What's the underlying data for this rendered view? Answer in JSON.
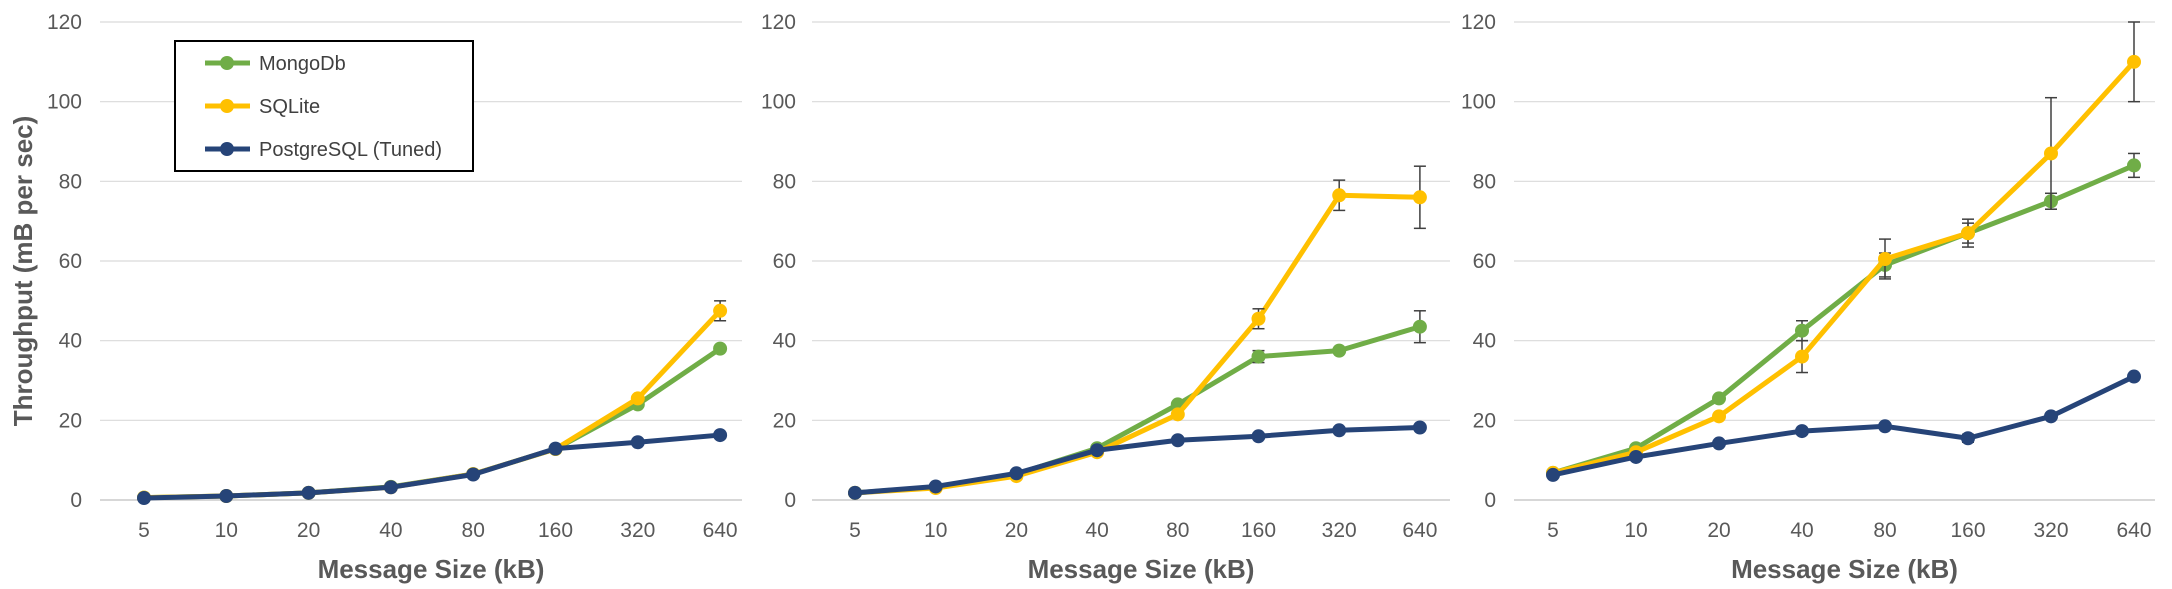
{
  "chart_data": [
    {
      "type": "line",
      "categories": [
        "5",
        "10",
        "20",
        "40",
        "80",
        "160",
        "320",
        "640"
      ],
      "xlabel": "Message Size (kB)",
      "ylabel": "Throughput (mB per sec)",
      "ylim": [
        0,
        120
      ],
      "yticks": [
        "0",
        "20",
        "40",
        "60",
        "80",
        "100",
        "120"
      ],
      "grid": true,
      "legend": "top-left",
      "series": [
        {
          "name": "MongoDb",
          "color": "#70ad47",
          "values": [
            0.6,
            1.0,
            1.8,
            3.3,
            6.5,
            12.8,
            24.0,
            38.0
          ],
          "err": [
            0,
            0,
            0,
            0,
            0,
            0,
            0,
            0
          ]
        },
        {
          "name": "SQLite",
          "color": "#ffc000",
          "values": [
            0.6,
            1.0,
            1.8,
            3.2,
            6.5,
            12.8,
            25.5,
            47.5
          ],
          "err": [
            0,
            0,
            0,
            0,
            0,
            0,
            0,
            2.5
          ]
        },
        {
          "name": "PostgreSQL (Tuned)",
          "color": "#264478",
          "values": [
            0.5,
            1.0,
            1.8,
            3.2,
            6.4,
            12.9,
            14.5,
            16.3
          ],
          "err": [
            0,
            0,
            0,
            0,
            0,
            0,
            0,
            0
          ]
        }
      ]
    },
    {
      "type": "line",
      "categories": [
        "5",
        "10",
        "20",
        "40",
        "80",
        "160",
        "320",
        "640"
      ],
      "xlabel": "Message Size (kB)",
      "ylabel": "",
      "ylim": [
        0,
        120
      ],
      "yticks": [
        "0",
        "20",
        "40",
        "60",
        "80",
        "100",
        "120"
      ],
      "grid": true,
      "series": [
        {
          "name": "MongoDb",
          "color": "#70ad47",
          "values": [
            1.8,
            3.2,
            6.5,
            13.0,
            24.0,
            36.0,
            37.5,
            43.5
          ],
          "err": [
            0,
            0,
            0,
            0,
            0,
            1.5,
            0,
            4.0
          ]
        },
        {
          "name": "SQLite",
          "color": "#ffc000",
          "values": [
            1.8,
            3.0,
            6.0,
            12.0,
            21.5,
            45.5,
            76.5,
            76.0
          ],
          "err": [
            0,
            0,
            0,
            0,
            0,
            2.5,
            3.8,
            7.8
          ]
        },
        {
          "name": "PostgreSQL (Tuned)",
          "color": "#264478",
          "values": [
            1.8,
            3.4,
            6.7,
            12.5,
            15.0,
            16.0,
            17.5,
            18.2
          ],
          "err": [
            0,
            0,
            0,
            0,
            0,
            0,
            0,
            0
          ]
        }
      ]
    },
    {
      "type": "line",
      "categories": [
        "5",
        "10",
        "20",
        "40",
        "80",
        "160",
        "320",
        "640"
      ],
      "xlabel": "Message Size (kB)",
      "ylabel": "",
      "ylim": [
        0,
        120
      ],
      "yticks": [
        "0",
        "20",
        "40",
        "60",
        "80",
        "100",
        "120"
      ],
      "grid": true,
      "series": [
        {
          "name": "MongoDb",
          "color": "#70ad47",
          "values": [
            6.8,
            13.0,
            25.5,
            42.5,
            59.0,
            67.0,
            75.0,
            84.0
          ],
          "err": [
            0,
            0,
            0,
            2.5,
            3.0,
            2.5,
            2.0,
            3.0
          ]
        },
        {
          "name": "SQLite",
          "color": "#ffc000",
          "values": [
            6.8,
            12.0,
            21.0,
            36.0,
            60.5,
            67.0,
            87.0,
            110.0
          ],
          "err": [
            0,
            0,
            0,
            4.0,
            5.0,
            3.5,
            14.0,
            10.0
          ]
        },
        {
          "name": "PostgreSQL (Tuned)",
          "color": "#264478",
          "values": [
            6.3,
            10.8,
            14.2,
            17.3,
            18.5,
            15.5,
            21.0,
            31.0
          ],
          "err": [
            0,
            0,
            0,
            0,
            0,
            1.0,
            0,
            0
          ]
        }
      ]
    }
  ]
}
